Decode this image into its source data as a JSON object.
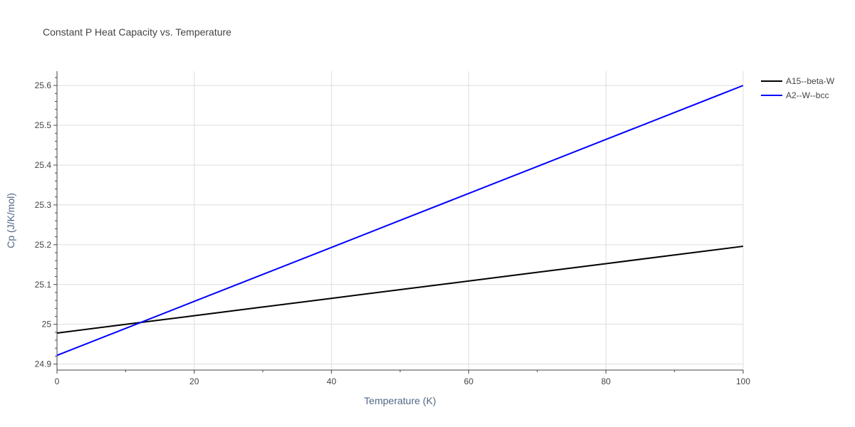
{
  "chart_data": {
    "type": "line",
    "title": "Constant P Heat Capacity vs. Temperature",
    "xlabel": "Temperature (K)",
    "ylabel": "Cp (J/K/mol)",
    "xlim": [
      0,
      100
    ],
    "ylim": [
      24.885,
      25.636
    ],
    "x_ticks": [
      0,
      20,
      40,
      60,
      80,
      100
    ],
    "x_tick_labels": [
      "0",
      "20",
      "40",
      "60",
      "80",
      "100"
    ],
    "y_ticks": [
      24.9,
      25.0,
      25.1,
      25.2,
      25.3,
      25.4,
      25.5,
      25.6
    ],
    "y_tick_labels": [
      "24.9",
      "25",
      "25.1",
      "25.2",
      "25.3",
      "25.4",
      "25.5",
      "25.6"
    ],
    "grid": true,
    "legend_position": "top-right",
    "series": [
      {
        "name": "A15--beta-W",
        "color": "#000000",
        "x": [
          0,
          10,
          20,
          30,
          40,
          50,
          60,
          70,
          80,
          90,
          100
        ],
        "y": [
          24.978,
          24.9998,
          25.0216,
          25.0434,
          25.0652,
          25.087,
          25.1088,
          25.1306,
          25.1524,
          25.1742,
          25.196
        ]
      },
      {
        "name": "A2--W--bcc",
        "color": "#0000ff",
        "x": [
          0,
          10,
          20,
          30,
          40,
          50,
          60,
          70,
          80,
          90,
          100
        ],
        "y": [
          24.922,
          24.9898,
          25.0576,
          25.1254,
          25.1932,
          25.261,
          25.3288,
          25.3966,
          25.4644,
          25.5322,
          25.6
        ]
      }
    ]
  }
}
